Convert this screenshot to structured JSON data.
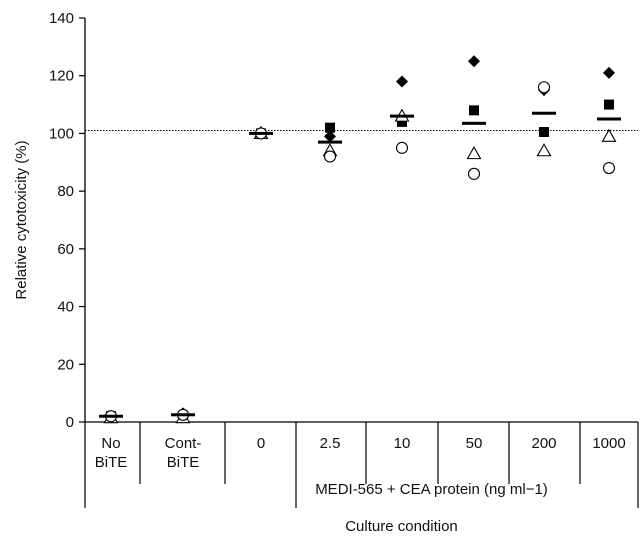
{
  "chart_data": {
    "type": "scatter",
    "xlabel": "Culture condition",
    "ylabel": "Relative cytotoxicity (%)",
    "ylim": [
      0,
      140
    ],
    "yticks": [
      0,
      20,
      40,
      60,
      80,
      100,
      120,
      140
    ],
    "reference_line": 101,
    "categories": [
      {
        "lines": [
          "No",
          "BiTE"
        ]
      },
      {
        "lines": [
          "Cont-",
          "BiTE"
        ]
      },
      {
        "lines": [
          "0"
        ]
      },
      {
        "lines": [
          "2.5"
        ]
      },
      {
        "lines": [
          "10"
        ]
      },
      {
        "lines": [
          "50"
        ]
      },
      {
        "lines": [
          "200"
        ]
      },
      {
        "lines": [
          "1000"
        ]
      }
    ],
    "group_label": "MEDI-565 + CEA protein (ng ml−1)",
    "series": [
      {
        "marker": "diamond",
        "values": [
          2,
          3,
          100,
          99,
          118,
          125,
          115,
          121
        ]
      },
      {
        "marker": "square",
        "values": [
          2,
          2,
          100,
          102,
          104,
          108,
          100.5,
          110
        ]
      },
      {
        "marker": "triangle",
        "values": [
          1.5,
          1.5,
          100,
          94,
          106,
          93,
          94,
          99
        ]
      },
      {
        "marker": "circle",
        "values": [
          2,
          2.5,
          100,
          92,
          95,
          86,
          116,
          88
        ]
      },
      {
        "marker": "mean",
        "values": [
          2,
          2.5,
          100,
          97,
          106,
          103.5,
          107,
          105
        ]
      }
    ]
  }
}
